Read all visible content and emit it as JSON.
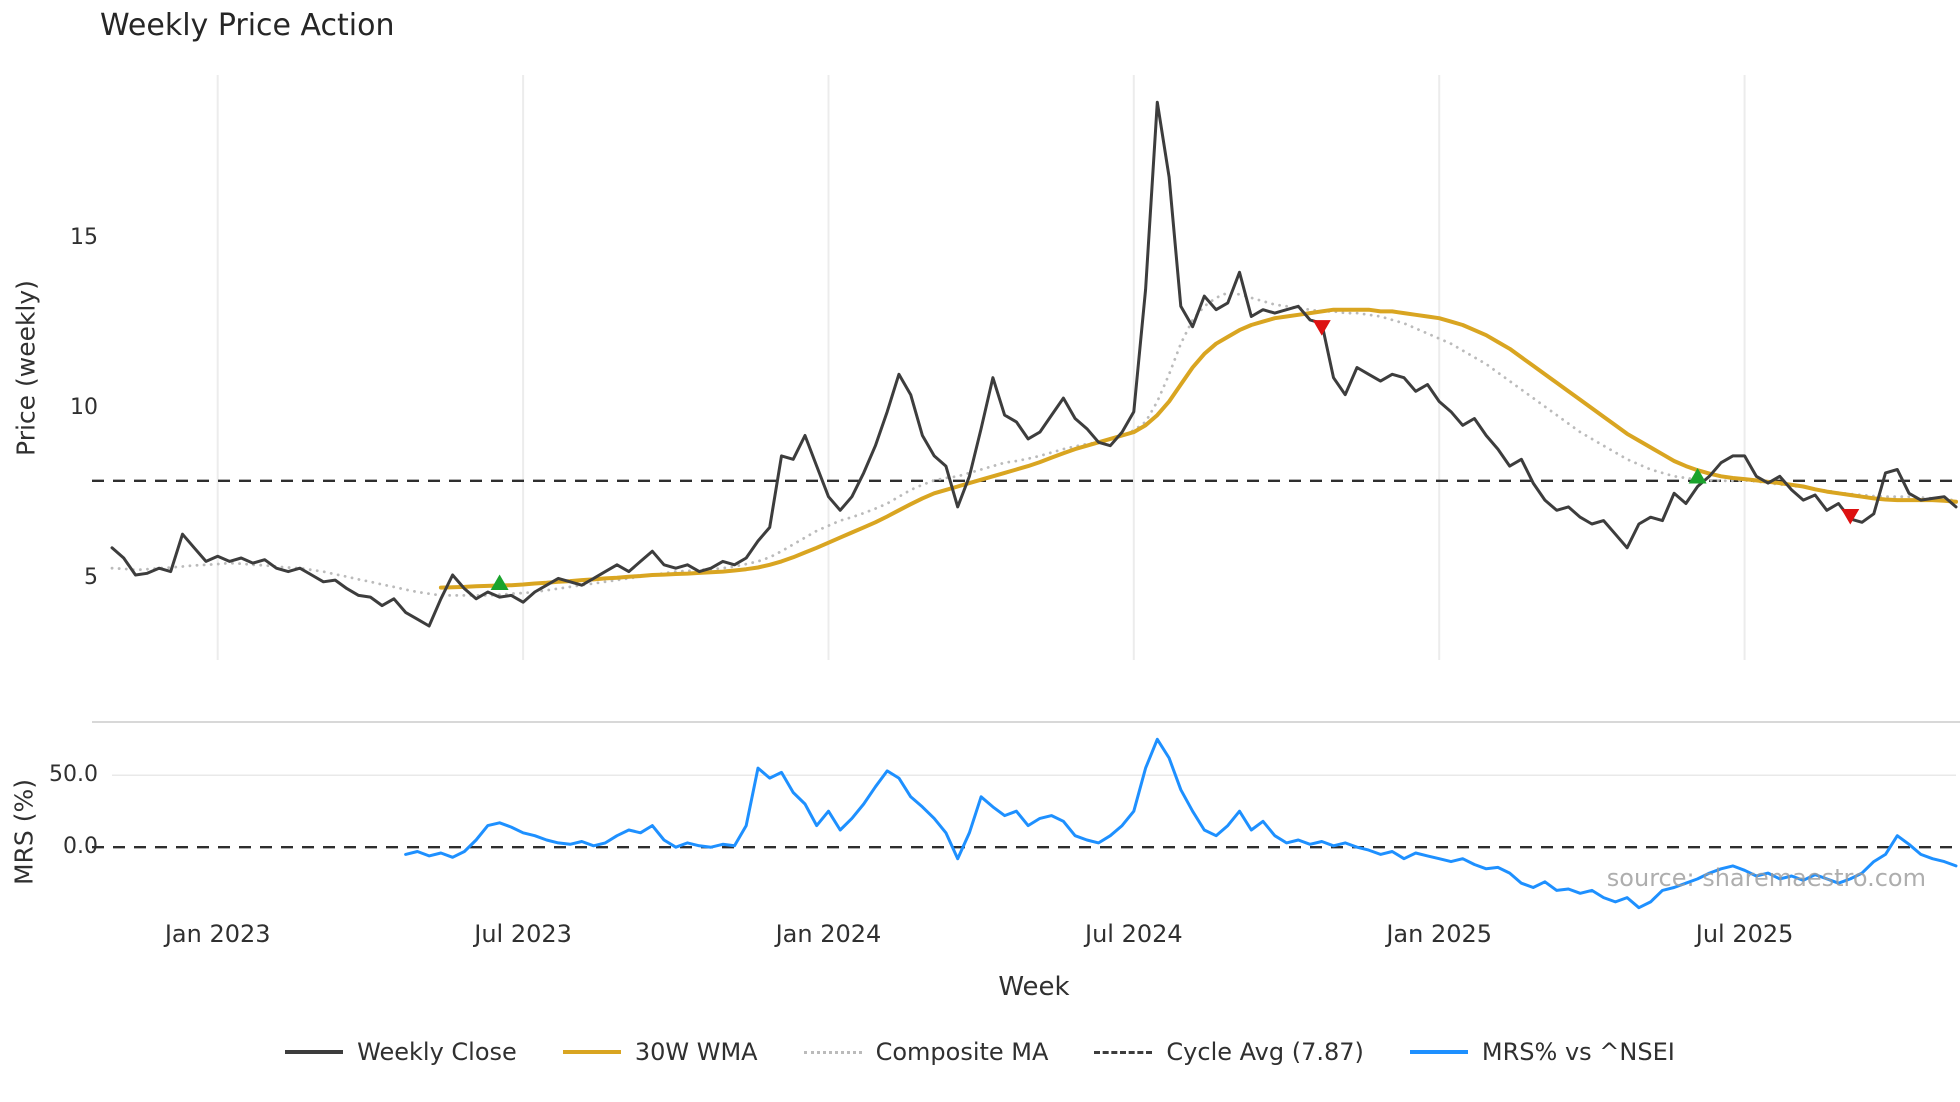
{
  "chart_data": {
    "type": "line",
    "title": "Weekly Price Action",
    "xlabel": "Week",
    "watermark": "source: sharemaestro.com",
    "weeks_total": 157,
    "x_tick_labels": [
      "Jan 2023",
      "Jul 2023",
      "Jan 2024",
      "Jul 2024",
      "Jan 2025",
      "Jul 2025"
    ],
    "x_tick_weeks": [
      9,
      35,
      61,
      87,
      113,
      139
    ],
    "panels": [
      {
        "name": "price",
        "ylabel": "Price (weekly)",
        "ylim": [
          2.6,
          19.8
        ],
        "y_ticks": [
          {
            "value": 5,
            "label": "5"
          },
          {
            "value": 10,
            "label": "10"
          },
          {
            "value": 15,
            "label": "15"
          }
        ],
        "hline": {
          "name": "cycle-avg-line",
          "value": 7.87,
          "color": "#2e2e2e",
          "style": "dashed"
        },
        "series": [
          {
            "name": "Composite MA",
            "color": "#bbbbbb",
            "style": "dotted",
            "width": 2.8,
            "start_week": 0,
            "values": [
              5.3,
              5.28,
              5.25,
              5.27,
              5.3,
              5.32,
              5.35,
              5.38,
              5.4,
              5.42,
              5.45,
              5.43,
              5.4,
              5.38,
              5.35,
              5.32,
              5.3,
              5.25,
              5.2,
              5.12,
              5.05,
              4.97,
              4.9,
              4.82,
              4.75,
              4.67,
              4.6,
              4.55,
              4.5,
              4.5,
              4.5,
              4.5,
              4.5,
              4.52,
              4.55,
              4.57,
              4.6,
              4.65,
              4.7,
              4.75,
              4.8,
              4.85,
              4.9,
              4.95,
              5.0,
              5.05,
              5.1,
              5.15,
              5.2,
              5.22,
              5.25,
              5.27,
              5.3,
              5.35,
              5.42,
              5.5,
              5.62,
              5.8,
              6.0,
              6.2,
              6.4,
              6.55,
              6.7,
              6.8,
              6.92,
              7.05,
              7.2,
              7.4,
              7.6,
              7.75,
              7.88,
              7.95,
              8.0,
              8.1,
              8.2,
              8.3,
              8.4,
              8.45,
              8.52,
              8.6,
              8.7,
              8.8,
              8.88,
              8.95,
              9.0,
              9.1,
              9.2,
              9.35,
              9.6,
              10.2,
              11.0,
              11.9,
              12.6,
              13.0,
              13.25,
              13.4,
              13.35,
              13.25,
              13.15,
              13.05,
              13.0,
              12.95,
              12.9,
              12.85,
              12.85,
              12.8,
              12.8,
              12.75,
              12.7,
              12.6,
              12.5,
              12.35,
              12.2,
              12.05,
              11.9,
              11.7,
              11.5,
              11.3,
              11.05,
              10.8,
              10.55,
              10.3,
              10.05,
              9.8,
              9.55,
              9.3,
              9.1,
              8.9,
              8.7,
              8.5,
              8.35,
              8.2,
              8.1,
              8.0,
              7.95,
              7.9,
              7.88,
              7.87,
              7.87,
              7.88,
              7.85,
              7.8,
              7.76,
              7.72,
              7.68,
              7.62,
              7.58,
              7.52,
              7.48,
              7.45,
              7.42,
              7.4,
              7.4,
              7.4,
              7.38,
              7.35,
              7.32,
              7.3
            ]
          },
          {
            "name": "30W WMA",
            "color": "#D9A521",
            "style": "solid",
            "width": 4,
            "start_week": 28,
            "values": [
              4.73,
              4.74,
              4.75,
              4.77,
              4.78,
              4.79,
              4.8,
              4.82,
              4.85,
              4.87,
              4.9,
              4.92,
              4.95,
              4.97,
              5.0,
              5.02,
              5.05,
              5.07,
              5.1,
              5.11,
              5.13,
              5.14,
              5.16,
              5.18,
              5.2,
              5.23,
              5.27,
              5.32,
              5.4,
              5.5,
              5.62,
              5.76,
              5.9,
              6.05,
              6.2,
              6.35,
              6.5,
              6.65,
              6.82,
              7.0,
              7.18,
              7.35,
              7.5,
              7.6,
              7.7,
              7.8,
              7.9,
              8.0,
              8.1,
              8.2,
              8.3,
              8.42,
              8.55,
              8.68,
              8.8,
              8.9,
              9.0,
              9.1,
              9.2,
              9.3,
              9.5,
              9.8,
              10.2,
              10.7,
              11.2,
              11.6,
              11.9,
              12.1,
              12.3,
              12.45,
              12.55,
              12.65,
              12.7,
              12.75,
              12.8,
              12.85,
              12.9,
              12.9,
              12.9,
              12.9,
              12.85,
              12.85,
              12.8,
              12.75,
              12.7,
              12.65,
              12.55,
              12.45,
              12.3,
              12.15,
              11.95,
              11.75,
              11.5,
              11.25,
              11.0,
              10.75,
              10.5,
              10.25,
              10.0,
              9.75,
              9.5,
              9.25,
              9.05,
              8.85,
              8.65,
              8.45,
              8.3,
              8.18,
              8.08,
              8.0,
              7.95,
              7.92,
              7.88,
              7.84,
              7.8,
              7.75,
              7.7,
              7.62,
              7.55,
              7.5,
              7.45,
              7.4,
              7.35,
              7.32,
              7.3,
              7.3,
              7.3,
              7.3,
              7.28,
              7.25
            ]
          },
          {
            "name": "Weekly Close",
            "color": "#3d3d3d",
            "style": "solid",
            "width": 3,
            "start_week": 0,
            "values": [
              5.9,
              5.6,
              5.1,
              5.15,
              5.3,
              5.2,
              6.3,
              5.9,
              5.5,
              5.65,
              5.5,
              5.6,
              5.45,
              5.55,
              5.3,
              5.2,
              5.3,
              5.1,
              4.9,
              4.95,
              4.7,
              4.5,
              4.45,
              4.2,
              4.4,
              4.0,
              3.8,
              3.6,
              4.4,
              5.1,
              4.7,
              4.4,
              4.6,
              4.45,
              4.5,
              4.3,
              4.6,
              4.8,
              5.0,
              4.9,
              4.8,
              5.0,
              5.2,
              5.4,
              5.2,
              5.5,
              5.8,
              5.4,
              5.3,
              5.4,
              5.2,
              5.3,
              5.5,
              5.4,
              5.6,
              6.1,
              6.5,
              8.6,
              8.5,
              9.2,
              8.3,
              7.4,
              7.0,
              7.4,
              8.1,
              8.9,
              9.9,
              11.0,
              10.4,
              9.2,
              8.6,
              8.3,
              7.1,
              8.0,
              9.4,
              10.9,
              9.8,
              9.6,
              9.1,
              9.3,
              9.8,
              10.3,
              9.7,
              9.4,
              9.0,
              8.9,
              9.3,
              9.9,
              13.5,
              19.0,
              16.8,
              13.0,
              12.4,
              13.3,
              12.9,
              13.1,
              14.0,
              12.7,
              12.9,
              12.8,
              12.9,
              13.0,
              12.6,
              12.5,
              10.9,
              10.4,
              11.2,
              11.0,
              10.8,
              11.0,
              10.9,
              10.5,
              10.7,
              10.2,
              9.9,
              9.5,
              9.7,
              9.2,
              8.8,
              8.3,
              8.5,
              7.8,
              7.3,
              7.0,
              7.1,
              6.8,
              6.6,
              6.7,
              6.3,
              5.9,
              6.6,
              6.8,
              6.7,
              7.5,
              7.2,
              7.7,
              8.0,
              8.4,
              8.6,
              8.6,
              8.0,
              7.8,
              8.0,
              7.6,
              7.3,
              7.45,
              7.0,
              7.2,
              6.75,
              6.65,
              6.9,
              8.1,
              8.2,
              7.5,
              7.3,
              7.35,
              7.4,
              7.1
            ]
          }
        ],
        "markers": {
          "buy": {
            "shape": "triangle-up",
            "color": "#1aa32c",
            "points": [
              {
                "week": 33,
                "price": 4.85
              },
              {
                "week": 135,
                "price": 7.98
              }
            ]
          },
          "sell": {
            "shape": "triangle-down",
            "color": "#dd1111",
            "points": [
              {
                "week": 103,
                "price": 12.4
              },
              {
                "week": 148,
                "price": 6.85
              }
            ]
          }
        }
      },
      {
        "name": "mrs",
        "ylabel": "MRS (%)",
        "ylim": [
          -45,
          87
        ],
        "y_ticks": [
          {
            "value": 0,
            "label": "0.0"
          },
          {
            "value": 50,
            "label": "50.0"
          }
        ],
        "grid_values": [
          50
        ],
        "hline": {
          "name": "mrs-zero-line",
          "value": 0,
          "color": "#2e2e2e",
          "style": "dashed"
        },
        "series": [
          {
            "name": "MRS% vs ^NSEI",
            "color": "#1E90FF",
            "style": "solid",
            "width": 3,
            "start_week": 25,
            "values": [
              -5,
              -3,
              -6,
              -4,
              -7,
              -3,
              5,
              15,
              17,
              14,
              10,
              8,
              5,
              3,
              2,
              4,
              1,
              3,
              8,
              12,
              10,
              15,
              5,
              0,
              3,
              1,
              0,
              2,
              1,
              15,
              55,
              48,
              52,
              38,
              30,
              15,
              25,
              12,
              20,
              30,
              42,
              53,
              48,
              35,
              28,
              20,
              10,
              -8,
              10,
              35,
              28,
              22,
              25,
              15,
              20,
              22,
              18,
              8,
              5,
              3,
              8,
              15,
              25,
              55,
              75,
              62,
              40,
              25,
              12,
              8,
              15,
              25,
              12,
              18,
              8,
              3,
              5,
              2,
              4,
              1,
              3,
              0,
              -2,
              -5,
              -3,
              -8,
              -4,
              -6,
              -8,
              -10,
              -8,
              -12,
              -15,
              -14,
              -18,
              -25,
              -28,
              -24,
              -30,
              -29,
              -32,
              -30,
              -35,
              -38,
              -35,
              -42,
              -38,
              -30,
              -28,
              -25,
              -22,
              -18,
              -15,
              -13,
              -16,
              -20,
              -18,
              -22,
              -20,
              -23,
              -19,
              -22,
              -25,
              -22,
              -18,
              -10,
              -5,
              8,
              2,
              -5,
              -8,
              -10,
              -13
            ]
          }
        ]
      }
    ],
    "legend": [
      {
        "label": "Weekly Close",
        "color": "#3d3d3d",
        "style": "solid"
      },
      {
        "label": "30W WMA",
        "color": "#D9A521",
        "style": "solid"
      },
      {
        "label": "Composite MA",
        "color": "#bbbbbb",
        "style": "dotted"
      },
      {
        "label": "Cycle Avg (7.87)",
        "color": "#3d3d3d",
        "style": "dashed"
      },
      {
        "label": "MRS% vs ^NSEI",
        "color": "#1E90FF",
        "style": "solid"
      }
    ]
  }
}
